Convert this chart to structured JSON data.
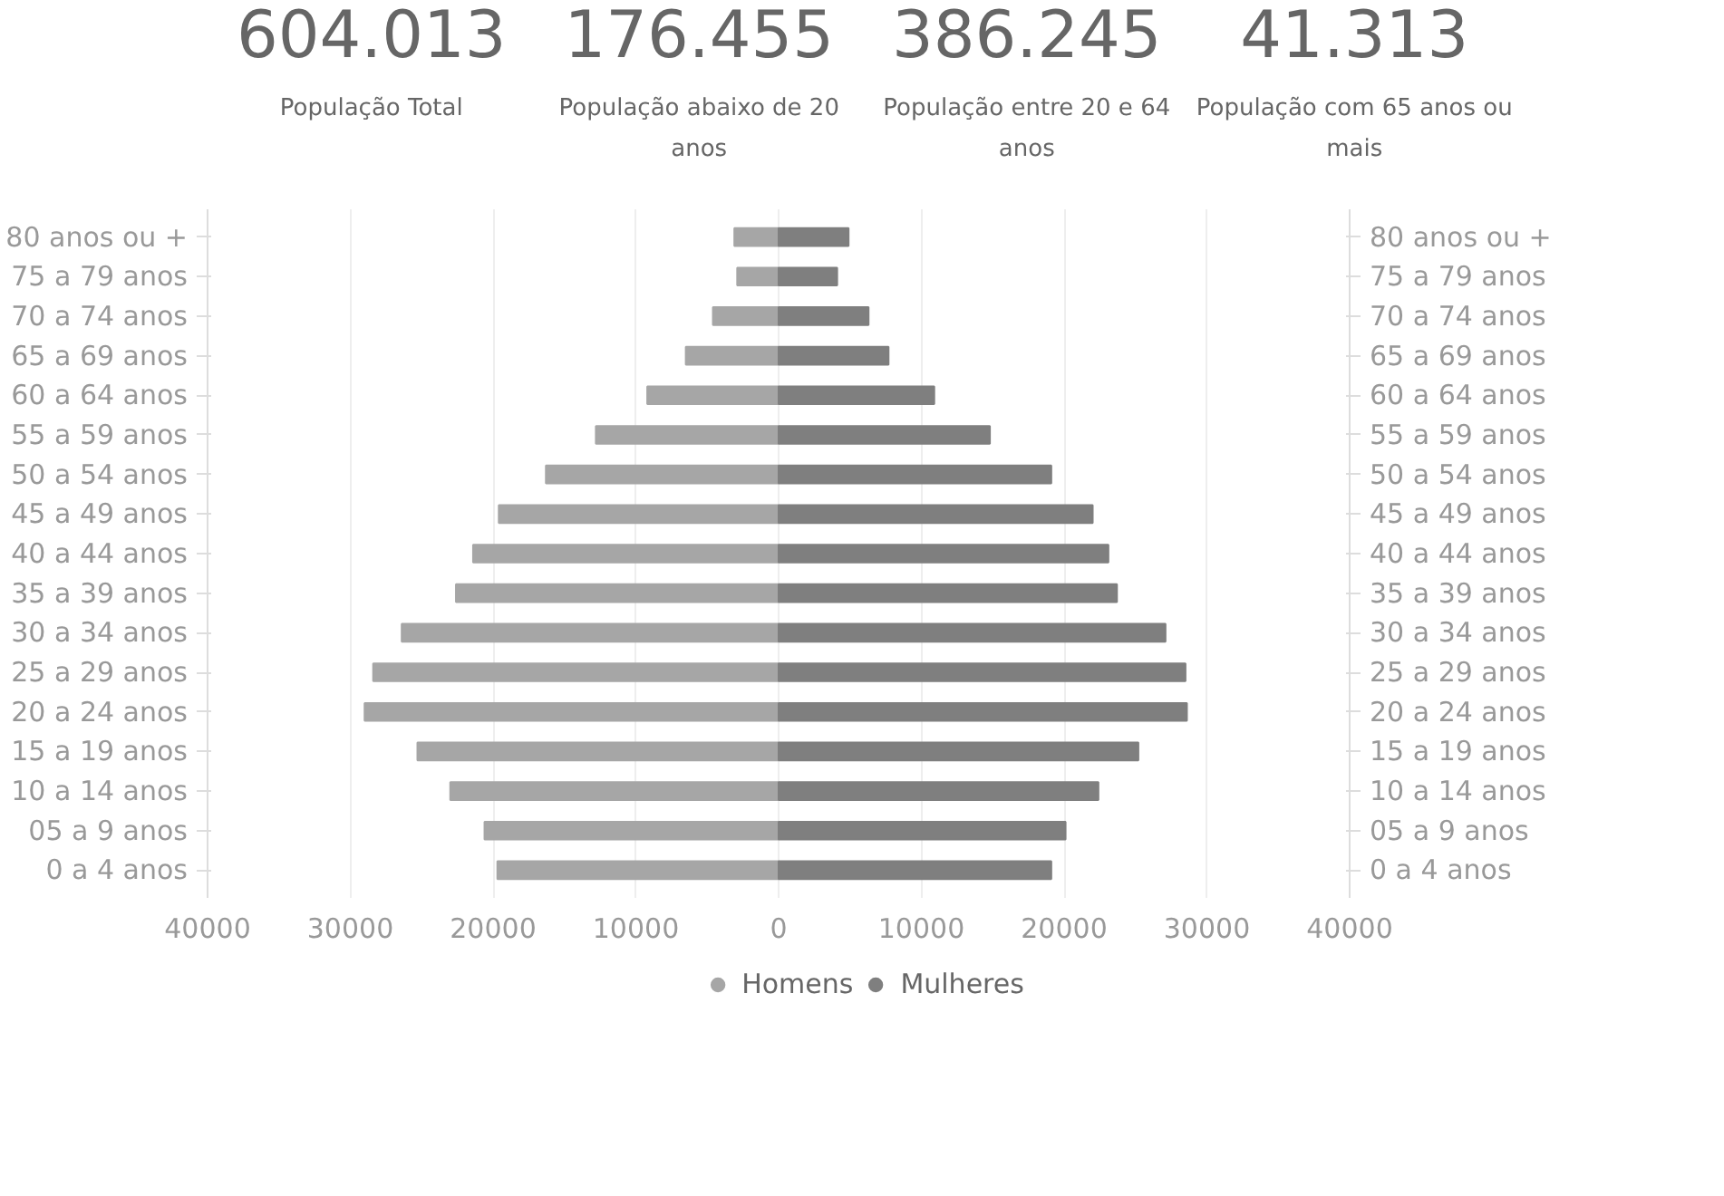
{
  "chart_data": [
    {
      "type": "other",
      "annotations": [
        "604.013",
        "População Total",
        "176.455",
        "População abaixo de 20 anos",
        "386.245",
        "População entre 20 e 64 anos",
        "41.313",
        "População com 65 anos ou mais"
      ]
    },
    {
      "type": "bar",
      "orientation": "horizontal",
      "categories": [
        "80 anos ou +",
        "75 a 79 anos",
        "70 a 74 anos",
        "65 a 69 anos",
        "60 a 64 anos",
        "55 a 59 anos",
        "50 a 54 anos",
        "45 a 49 anos",
        "40 a 44 anos",
        "35 a 39 anos",
        "30 a 34 anos",
        "25 a 29 anos",
        "20 a 24 anos",
        "15 a 19 anos",
        "10 a 14 anos",
        "05 a 9 anos",
        "0 a 4 anos"
      ],
      "y2_categories": [
        "80 anos ou +",
        "75 a 79 anos",
        "70 a 74 anos",
        "65 a 69 anos",
        "60 a 64 anos",
        "55 a 59 anos",
        "50 a 54 anos",
        "45 a 49 anos",
        "40 a 44 anos",
        "35 a 39 anos",
        "30 a 34 anos",
        "25 a 29 anos",
        "20 a 24 anos",
        "15 a 19 anos",
        "10 a 14 anos",
        "05 a 9 anos",
        "0 a 4 anos"
      ],
      "series": [
        {
          "name": "Homens",
          "color": "#a6a6a6",
          "values": [
            -3100,
            -2900,
            -4600,
            -6500,
            -9200,
            -12800,
            -16300,
            -19600,
            -21400,
            -22600,
            -26400,
            -28400,
            -29000,
            -25300,
            -23000,
            -20600,
            -19700
          ]
        },
        {
          "name": "Mulheres",
          "color": "#7f7f7f",
          "values": [
            4900,
            4100,
            6300,
            7700,
            10900,
            14800,
            19100,
            22000,
            23100,
            23700,
            27100,
            28500,
            28600,
            25200,
            22400,
            20100,
            19100
          ]
        }
      ],
      "xlim": [
        -40000,
        40000
      ],
      "xticks": [
        {
          "value": -40000,
          "label": "40000"
        },
        {
          "value": -30000,
          "label": "30000"
        },
        {
          "value": -20000,
          "label": "20000"
        },
        {
          "value": -10000,
          "label": "10000"
        },
        0,
        10000,
        20000,
        30000,
        40000
      ],
      "stacked": true,
      "grid": "x",
      "legend": "bottom"
    }
  ]
}
